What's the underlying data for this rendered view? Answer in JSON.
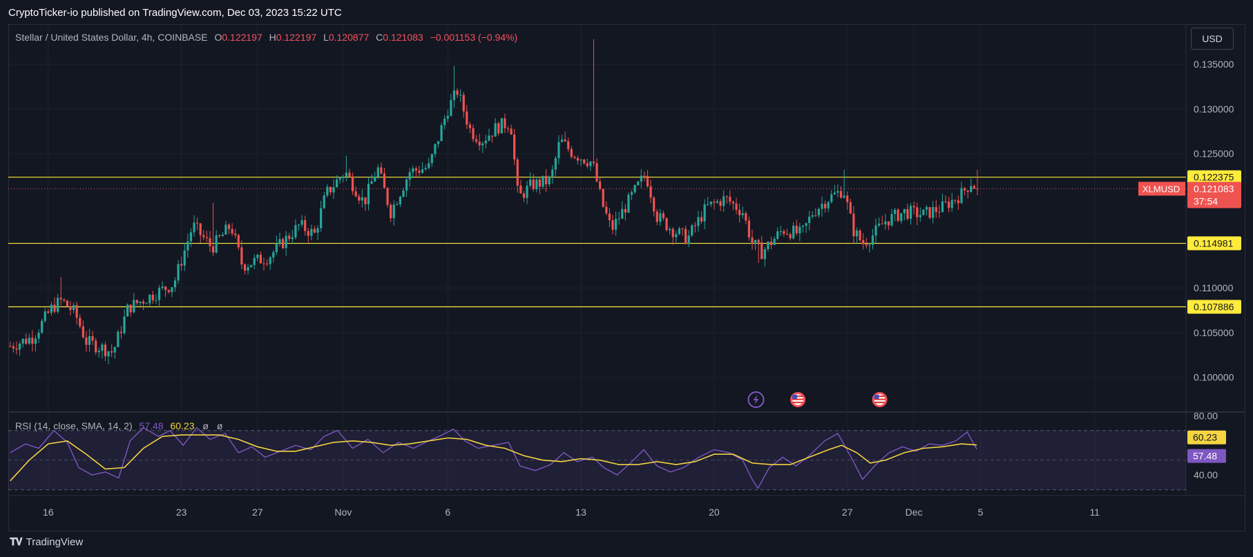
{
  "publisher": "CryptoTicker-io published on TradingView.com, Dec 03, 2023 15:22 UTC",
  "currency_button": "USD",
  "logo_text": "TradingView",
  "legend": {
    "symbol": "Stellar / United States Dollar, 4h, COINBASE",
    "o_label": "O",
    "o_value": "0.122197",
    "h_label": "H",
    "h_value": "0.122197",
    "l_label": "L",
    "l_value": "0.120877",
    "c_label": "C",
    "c_value": "0.121083",
    "change": "−0.001153 (−0.94%)"
  },
  "rsi_legend": {
    "label": "RSI (14, close, SMA, 14, 2)",
    "rsi_value": "57.48",
    "sma_value": "60.23",
    "na1": "ø",
    "na2": "ø"
  },
  "colors": {
    "background": "#131722",
    "up": "#26a69a",
    "down": "#ef5350",
    "level_line": "#ffeb3b",
    "rsi_line": "#7e57c2",
    "rsi_sma": "#f5d442"
  },
  "chart_data": [
    {
      "type": "candlestick",
      "title": "Stellar / United States Dollar, 4h, COINBASE",
      "ylim": [
        0.0962,
        0.1394
      ],
      "y_ticks": [
        "0.135000",
        "0.130000",
        "0.125000",
        "0.110000",
        "0.105000",
        "0.100000"
      ],
      "y_tick_values": [
        0.135,
        0.13,
        0.125,
        0.11,
        0.105,
        0.1
      ],
      "x_ticks": [
        {
          "label": "16",
          "day": 16
        },
        {
          "label": "23",
          "day": 23
        },
        {
          "label": "27",
          "day": 27
        },
        {
          "label": "Nov",
          "day": 31.5
        },
        {
          "label": "6",
          "day": 37
        },
        {
          "label": "13",
          "day": 44
        },
        {
          "label": "20",
          "day": 51
        },
        {
          "label": "27",
          "day": 58
        },
        {
          "label": "Dec",
          "day": 61.5
        },
        {
          "label": "5",
          "day": 65
        },
        {
          "label": "11",
          "day": 71
        }
      ],
      "x_domain_days": [
        13.9,
        75.8
      ],
      "horizontal_levels": [
        {
          "value": 0.122375,
          "label": "0.122375"
        },
        {
          "value": 0.114981,
          "label": "0.114981"
        },
        {
          "value": 0.107886,
          "label": "0.107886"
        }
      ],
      "price_label": {
        "symbol": "XLMUSD",
        "value": "0.121083",
        "countdown": "37:54",
        "price": 0.121083
      },
      "price_anchors": [
        {
          "day": 14.0,
          "price": 0.1035
        },
        {
          "day": 15.2,
          "price": 0.1045
        },
        {
          "day": 16.2,
          "price": 0.1078
        },
        {
          "day": 16.7,
          "price": 0.1086
        },
        {
          "day": 17.4,
          "price": 0.1072
        },
        {
          "day": 18.0,
          "price": 0.104
        },
        {
          "day": 19.4,
          "price": 0.1028
        },
        {
          "day": 20.2,
          "price": 0.1078
        },
        {
          "day": 21.3,
          "price": 0.109
        },
        {
          "day": 22.6,
          "price": 0.1105
        },
        {
          "day": 23.6,
          "price": 0.117
        },
        {
          "day": 24.6,
          "price": 0.1145
        },
        {
          "day": 25.6,
          "price": 0.117
        },
        {
          "day": 26.2,
          "price": 0.1125
        },
        {
          "day": 27.6,
          "price": 0.1135
        },
        {
          "day": 29.2,
          "price": 0.117
        },
        {
          "day": 30.0,
          "price": 0.116
        },
        {
          "day": 30.6,
          "price": 0.1205
        },
        {
          "day": 31.6,
          "price": 0.123
        },
        {
          "day": 32.6,
          "price": 0.1195
        },
        {
          "day": 33.3,
          "price": 0.1235
        },
        {
          "day": 34.0,
          "price": 0.1185
        },
        {
          "day": 35.0,
          "price": 0.123
        },
        {
          "day": 36.0,
          "price": 0.1235
        },
        {
          "day": 37.0,
          "price": 0.13
        },
        {
          "day": 37.5,
          "price": 0.132
        },
        {
          "day": 38.2,
          "price": 0.1275
        },
        {
          "day": 38.8,
          "price": 0.1265
        },
        {
          "day": 39.6,
          "price": 0.128
        },
        {
          "day": 40.3,
          "price": 0.1285
        },
        {
          "day": 40.7,
          "price": 0.12
        },
        {
          "day": 41.4,
          "price": 0.1215
        },
        {
          "day": 42.4,
          "price": 0.122
        },
        {
          "day": 42.9,
          "price": 0.1265
        },
        {
          "day": 43.6,
          "price": 0.125
        },
        {
          "day": 44.6,
          "price": 0.124
        },
        {
          "day": 45.1,
          "price": 0.1195
        },
        {
          "day": 45.6,
          "price": 0.1165
        },
        {
          "day": 46.6,
          "price": 0.12
        },
        {
          "day": 47.4,
          "price": 0.1228
        },
        {
          "day": 48.0,
          "price": 0.118
        },
        {
          "day": 48.8,
          "price": 0.1165
        },
        {
          "day": 49.6,
          "price": 0.1155
        },
        {
          "day": 50.6,
          "price": 0.119
        },
        {
          "day": 51.6,
          "price": 0.12
        },
        {
          "day": 52.5,
          "price": 0.1185
        },
        {
          "day": 53.0,
          "price": 0.115
        },
        {
          "day": 53.5,
          "price": 0.114
        },
        {
          "day": 54.6,
          "price": 0.1165
        },
        {
          "day": 55.6,
          "price": 0.116
        },
        {
          "day": 56.2,
          "price": 0.1185
        },
        {
          "day": 57.0,
          "price": 0.12
        },
        {
          "day": 57.8,
          "price": 0.121
        },
        {
          "day": 58.3,
          "price": 0.1165
        },
        {
          "day": 58.8,
          "price": 0.115
        },
        {
          "day": 59.3,
          "price": 0.1158
        },
        {
          "day": 60.0,
          "price": 0.1175
        },
        {
          "day": 61.0,
          "price": 0.1185
        },
        {
          "day": 62.0,
          "price": 0.1182
        },
        {
          "day": 63.0,
          "price": 0.119
        },
        {
          "day": 64.0,
          "price": 0.1205
        },
        {
          "day": 64.5,
          "price": 0.1218
        },
        {
          "day": 64.8,
          "price": 0.1211
        }
      ],
      "spikes": [
        {
          "day": 37.3,
          "high": 0.1348
        },
        {
          "day": 44.6,
          "high": 0.1378
        },
        {
          "day": 16.7,
          "high": 0.1112
        },
        {
          "day": 24.6,
          "high": 0.1195
        },
        {
          "day": 31.6,
          "high": 0.1248
        },
        {
          "day": 57.8,
          "high": 0.1232
        },
        {
          "day": 53.3,
          "low": 0.1128
        },
        {
          "day": 58.8,
          "low": 0.1143
        }
      ],
      "events": [
        {
          "icon": "lightning-icon",
          "day": 53.2
        },
        {
          "icon": "us-flag-icon",
          "day": 55.4
        },
        {
          "icon": "us-flag-icon",
          "day": 59.7
        }
      ]
    },
    {
      "type": "line",
      "title": "RSI (14, close, SMA, 14, 2)",
      "ylim": [
        27,
        82
      ],
      "y_ticks": [
        "80.00",
        "40.00"
      ],
      "y_tick_values": [
        80,
        40
      ],
      "bands": {
        "upper": 70,
        "middle": 50,
        "lower": 30
      },
      "value_labels": [
        {
          "label": "60.23",
          "value": 60.23,
          "series": "SMA"
        },
        {
          "label": "57.48",
          "value": 57.48,
          "series": "RSI"
        }
      ],
      "series": [
        {
          "name": "RSI",
          "points": [
            {
              "day": 14.0,
              "value": 55
            },
            {
              "day": 14.8,
              "value": 61
            },
            {
              "day": 15.5,
              "value": 58
            },
            {
              "day": 16.3,
              "value": 70
            },
            {
              "day": 17.0,
              "value": 62
            },
            {
              "day": 17.6,
              "value": 45
            },
            {
              "day": 18.3,
              "value": 40
            },
            {
              "day": 19.0,
              "value": 42
            },
            {
              "day": 19.7,
              "value": 38
            },
            {
              "day": 20.3,
              "value": 63
            },
            {
              "day": 21.0,
              "value": 72
            },
            {
              "day": 21.8,
              "value": 66
            },
            {
              "day": 22.4,
              "value": 70
            },
            {
              "day": 23.1,
              "value": 60
            },
            {
              "day": 23.8,
              "value": 72
            },
            {
              "day": 24.5,
              "value": 64
            },
            {
              "day": 25.3,
              "value": 68
            },
            {
              "day": 26.0,
              "value": 55
            },
            {
              "day": 26.7,
              "value": 59
            },
            {
              "day": 27.4,
              "value": 52
            },
            {
              "day": 28.2,
              "value": 56
            },
            {
              "day": 29.0,
              "value": 60
            },
            {
              "day": 29.8,
              "value": 57
            },
            {
              "day": 30.5,
              "value": 66
            },
            {
              "day": 31.2,
              "value": 70
            },
            {
              "day": 32.0,
              "value": 58
            },
            {
              "day": 32.8,
              "value": 64
            },
            {
              "day": 33.6,
              "value": 55
            },
            {
              "day": 34.4,
              "value": 62
            },
            {
              "day": 35.2,
              "value": 58
            },
            {
              "day": 36.0,
              "value": 63
            },
            {
              "day": 36.7,
              "value": 67
            },
            {
              "day": 37.3,
              "value": 71
            },
            {
              "day": 37.9,
              "value": 63
            },
            {
              "day": 38.6,
              "value": 58
            },
            {
              "day": 39.4,
              "value": 60
            },
            {
              "day": 40.2,
              "value": 62
            },
            {
              "day": 40.8,
              "value": 46
            },
            {
              "day": 41.6,
              "value": 43
            },
            {
              "day": 42.4,
              "value": 47
            },
            {
              "day": 43.1,
              "value": 55
            },
            {
              "day": 43.8,
              "value": 49
            },
            {
              "day": 44.6,
              "value": 52
            },
            {
              "day": 45.2,
              "value": 45
            },
            {
              "day": 45.9,
              "value": 40
            },
            {
              "day": 46.6,
              "value": 48
            },
            {
              "day": 47.3,
              "value": 57
            },
            {
              "day": 48.0,
              "value": 46
            },
            {
              "day": 48.7,
              "value": 42
            },
            {
              "day": 49.4,
              "value": 45
            },
            {
              "day": 50.2,
              "value": 52
            },
            {
              "day": 51.0,
              "value": 57
            },
            {
              "day": 51.8,
              "value": 55
            },
            {
              "day": 52.5,
              "value": 50
            },
            {
              "day": 53.0,
              "value": 37
            },
            {
              "day": 53.3,
              "value": 31
            },
            {
              "day": 53.9,
              "value": 45
            },
            {
              "day": 54.6,
              "value": 52
            },
            {
              "day": 55.3,
              "value": 46
            },
            {
              "day": 56.0,
              "value": 53
            },
            {
              "day": 56.8,
              "value": 63
            },
            {
              "day": 57.5,
              "value": 68
            },
            {
              "day": 58.2,
              "value": 52
            },
            {
              "day": 58.8,
              "value": 37
            },
            {
              "day": 59.5,
              "value": 47
            },
            {
              "day": 60.2,
              "value": 55
            },
            {
              "day": 60.9,
              "value": 59
            },
            {
              "day": 61.6,
              "value": 56
            },
            {
              "day": 62.3,
              "value": 61
            },
            {
              "day": 63.0,
              "value": 60
            },
            {
              "day": 63.7,
              "value": 63
            },
            {
              "day": 64.3,
              "value": 69
            },
            {
              "day": 64.6,
              "value": 62
            },
            {
              "day": 64.8,
              "value": 57.48
            }
          ]
        },
        {
          "name": "SMA",
          "points": [
            {
              "day": 14.0,
              "value": 36
            },
            {
              "day": 15.0,
              "value": 50
            },
            {
              "day": 16.0,
              "value": 61
            },
            {
              "day": 17.0,
              "value": 63
            },
            {
              "day": 18.0,
              "value": 54
            },
            {
              "day": 19.0,
              "value": 44
            },
            {
              "day": 20.0,
              "value": 45
            },
            {
              "day": 21.0,
              "value": 58
            },
            {
              "day": 22.0,
              "value": 66
            },
            {
              "day": 23.0,
              "value": 67
            },
            {
              "day": 24.0,
              "value": 67
            },
            {
              "day": 25.0,
              "value": 67
            },
            {
              "day": 26.0,
              "value": 64
            },
            {
              "day": 27.0,
              "value": 59
            },
            {
              "day": 28.0,
              "value": 56
            },
            {
              "day": 29.0,
              "value": 56
            },
            {
              "day": 30.0,
              "value": 59
            },
            {
              "day": 31.0,
              "value": 62
            },
            {
              "day": 32.0,
              "value": 63
            },
            {
              "day": 33.0,
              "value": 62
            },
            {
              "day": 34.0,
              "value": 60
            },
            {
              "day": 35.0,
              "value": 61
            },
            {
              "day": 36.0,
              "value": 63
            },
            {
              "day": 37.0,
              "value": 65
            },
            {
              "day": 38.0,
              "value": 64
            },
            {
              "day": 39.0,
              "value": 60
            },
            {
              "day": 40.0,
              "value": 58
            },
            {
              "day": 41.0,
              "value": 53
            },
            {
              "day": 42.0,
              "value": 50
            },
            {
              "day": 43.0,
              "value": 49
            },
            {
              "day": 44.0,
              "value": 51
            },
            {
              "day": 45.0,
              "value": 50
            },
            {
              "day": 46.0,
              "value": 47
            },
            {
              "day": 47.0,
              "value": 47
            },
            {
              "day": 48.0,
              "value": 49
            },
            {
              "day": 49.0,
              "value": 47
            },
            {
              "day": 50.0,
              "value": 49
            },
            {
              "day": 51.0,
              "value": 54
            },
            {
              "day": 52.0,
              "value": 54
            },
            {
              "day": 53.0,
              "value": 48
            },
            {
              "day": 54.0,
              "value": 47
            },
            {
              "day": 55.0,
              "value": 47
            },
            {
              "day": 56.0,
              "value": 52
            },
            {
              "day": 57.0,
              "value": 57
            },
            {
              "day": 57.7,
              "value": 60
            },
            {
              "day": 58.5,
              "value": 55
            },
            {
              "day": 59.2,
              "value": 48
            },
            {
              "day": 60.0,
              "value": 50
            },
            {
              "day": 61.0,
              "value": 55
            },
            {
              "day": 62.0,
              "value": 58
            },
            {
              "day": 63.0,
              "value": 59
            },
            {
              "day": 64.0,
              "value": 61
            },
            {
              "day": 64.8,
              "value": 60.23
            }
          ]
        }
      ]
    }
  ]
}
